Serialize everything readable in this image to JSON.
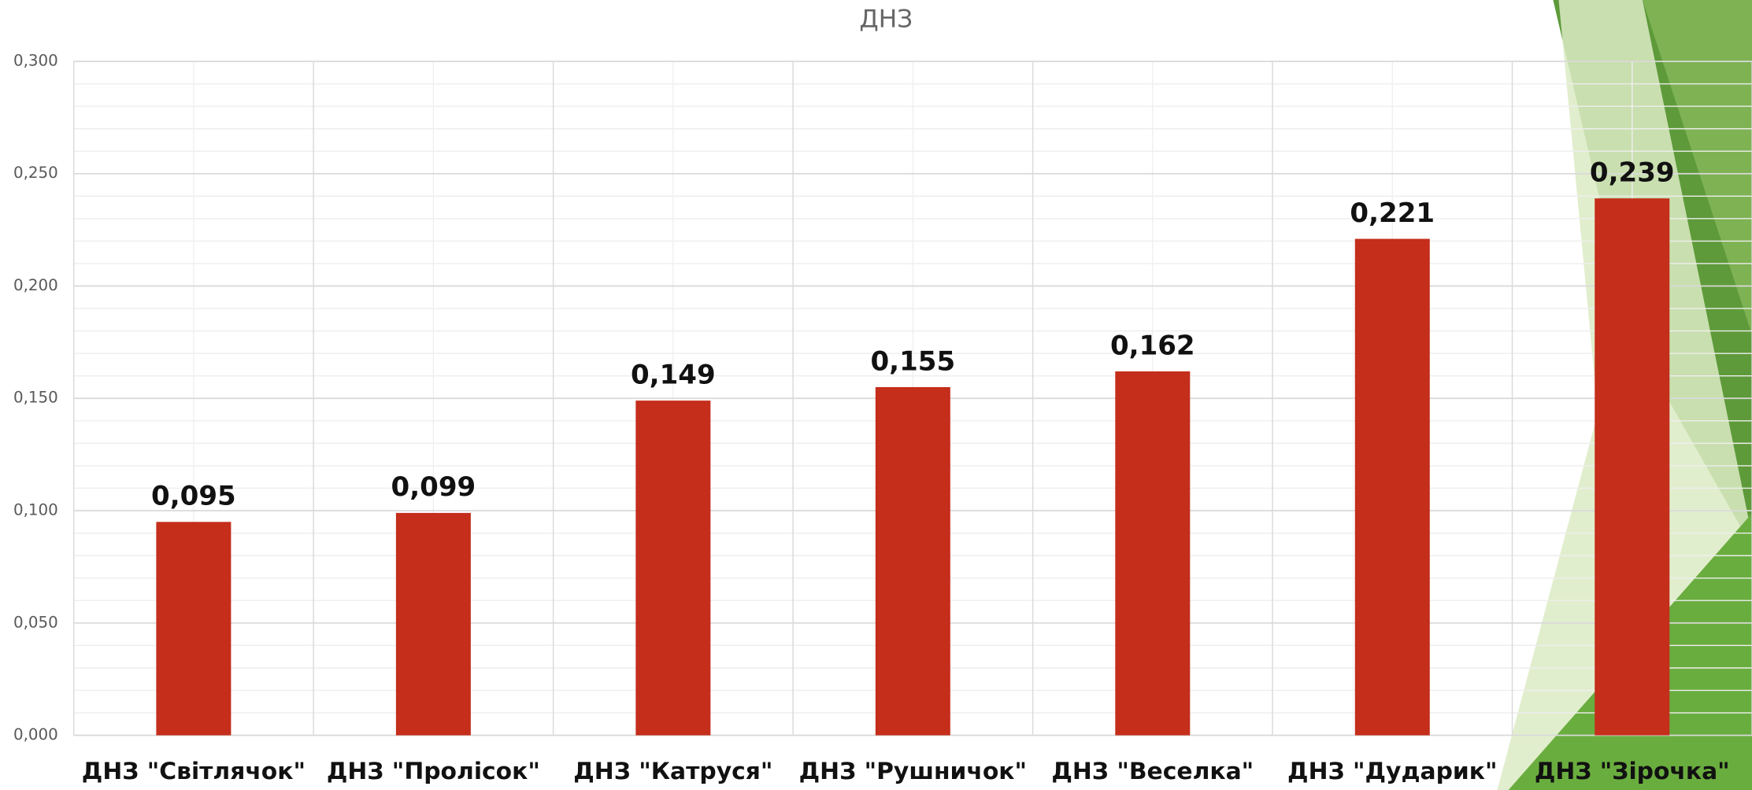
{
  "chart_data": {
    "type": "bar",
    "title": "ДНЗ",
    "categories": [
      "ДНЗ \"Світлячок\"",
      "ДНЗ \"Пролісок\"",
      "ДНЗ \"Катруся\"",
      "ДНЗ \"Рушничок\"",
      "ДНЗ \"Веселка\"",
      "ДНЗ \"Дударик\"",
      "ДНЗ \"Зірочка\""
    ],
    "values": [
      0.095,
      0.099,
      0.149,
      0.155,
      0.162,
      0.221,
      0.239
    ],
    "value_labels": [
      "0,095",
      "0,099",
      "0,149",
      "0,155",
      "0,162",
      "0,221",
      "0,239"
    ],
    "color": "#c42e1b",
    "ylim": [
      0,
      0.3
    ],
    "yticks": [
      {
        "value": 0,
        "label": "0,000"
      },
      {
        "value": 0.05,
        "label": "0,050"
      },
      {
        "value": 0.1,
        "label": "0,100"
      },
      {
        "value": 0.15,
        "label": "0,150"
      },
      {
        "value": 0.2,
        "label": "0,200"
      },
      {
        "value": 0.25,
        "label": "0,250"
      },
      {
        "value": 0.3,
        "label": "0,300"
      }
    ],
    "grid": true
  }
}
